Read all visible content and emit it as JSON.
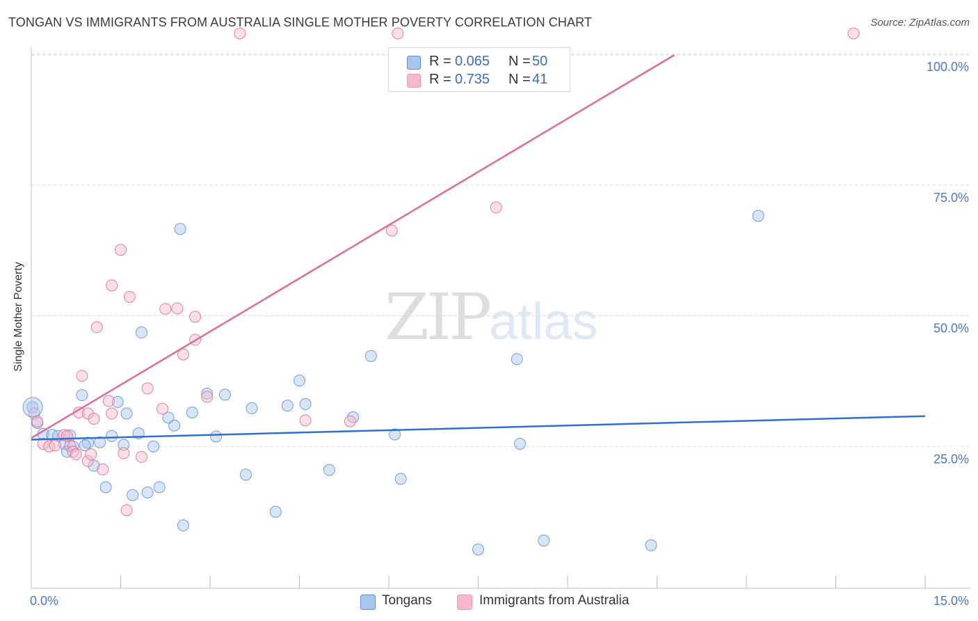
{
  "title": "TONGAN VS IMMIGRANTS FROM AUSTRALIA SINGLE MOTHER POVERTY CORRELATION CHART",
  "source": "Source: ZipAtlas.com",
  "watermark": {
    "zip": "ZIP",
    "atlas": "atlas"
  },
  "colors": {
    "blue": "#5b8fd6",
    "blue_fill": "#a9c6ee",
    "pink": "#e06b93",
    "pink_fill": "#f6b8ca",
    "blue_line": "#2f6fcf",
    "pink_line": "#e06b93"
  },
  "legend_top": {
    "rows": [
      {
        "swatch": "blue",
        "r_label": "R =",
        "r_value": "0.065",
        "n_label": "N =",
        "n_value": "50"
      },
      {
        "swatch": "pink",
        "r_label": "R =",
        "r_value": "0.735",
        "n_label": "N =",
        "n_value": "41"
      }
    ]
  },
  "legend_bottom": [
    {
      "label": "Tongans",
      "swatch": "blue"
    },
    {
      "label": "Immigrants from Australia",
      "swatch": "pink"
    }
  ],
  "chart_data": {
    "type": "scatter",
    "title": "TONGAN VS IMMIGRANTS FROM AUSTRALIA SINGLE MOTHER POVERTY CORRELATION CHART",
    "xlabel": "",
    "ylabel": "Single Mother Poverty",
    "xlim": [
      0,
      15
    ],
    "ylim": [
      0,
      100
    ],
    "x_tick_labels": [
      "0.0%",
      "15.0%"
    ],
    "y_ticks": [
      25,
      50,
      75,
      100
    ],
    "y_tick_labels": [
      "25.0%",
      "50.0%",
      "75.0%",
      "100.0%"
    ],
    "grid": true,
    "series": [
      {
        "name": "Tongans",
        "color": "blue",
        "trend": {
          "x": [
            0,
            15
          ],
          "y": [
            26.3,
            30.8
          ]
        },
        "points": [
          [
            0.02,
            32.5
          ],
          [
            0.1,
            29.5
          ],
          [
            0.2,
            27.4
          ],
          [
            0.35,
            27.2
          ],
          [
            0.45,
            27
          ],
          [
            0.55,
            25.5
          ],
          [
            0.6,
            24
          ],
          [
            0.7,
            25
          ],
          [
            0.85,
            34.8
          ],
          [
            0.95,
            25.7
          ],
          [
            1.05,
            21.3
          ],
          [
            1.15,
            25.8
          ],
          [
            1.25,
            17.2
          ],
          [
            1.35,
            27
          ],
          [
            1.45,
            33.5
          ],
          [
            1.55,
            25.3
          ],
          [
            1.6,
            31.3
          ],
          [
            1.7,
            15.7
          ],
          [
            1.8,
            27.5
          ],
          [
            1.85,
            46.8
          ],
          [
            1.95,
            16.2
          ],
          [
            2.05,
            25
          ],
          [
            2.15,
            17.2
          ],
          [
            2.3,
            30.5
          ],
          [
            2.4,
            29
          ],
          [
            2.5,
            66.6
          ],
          [
            2.55,
            9.9
          ],
          [
            2.7,
            31.5
          ],
          [
            2.95,
            35.1
          ],
          [
            3.1,
            26.9
          ],
          [
            3.25,
            34.9
          ],
          [
            3.6,
            19.6
          ],
          [
            3.7,
            32.3
          ],
          [
            4.1,
            12.5
          ],
          [
            4.3,
            32.8
          ],
          [
            4.5,
            37.6
          ],
          [
            4.6,
            33.1
          ],
          [
            5.0,
            20.5
          ],
          [
            5.4,
            30.6
          ],
          [
            5.7,
            42.3
          ],
          [
            6.1,
            27.3
          ],
          [
            6.2,
            18.8
          ],
          [
            7.5,
            5.3
          ],
          [
            8.15,
            41.7
          ],
          [
            8.2,
            25.5
          ],
          [
            8.6,
            7
          ],
          [
            10.4,
            6.1
          ],
          [
            12.2,
            69.1
          ],
          [
            0.65,
            27.1
          ],
          [
            0.9,
            25.2
          ]
        ]
      },
      {
        "name": "Immigrants from Australia",
        "color": "pink",
        "trend": {
          "x": [
            0,
            11.4
          ],
          "y": [
            26.6,
            104
          ]
        },
        "points": [
          [
            0.05,
            31.3
          ],
          [
            0.1,
            29.8
          ],
          [
            0.2,
            25.5
          ],
          [
            0.3,
            25
          ],
          [
            0.4,
            25.2
          ],
          [
            0.55,
            27.2
          ],
          [
            0.65,
            25.1
          ],
          [
            0.7,
            24
          ],
          [
            0.75,
            23.5
          ],
          [
            0.8,
            31.5
          ],
          [
            0.85,
            38.5
          ],
          [
            0.95,
            31.3
          ],
          [
            0.95,
            22.2
          ],
          [
            1.05,
            30.3
          ],
          [
            1.1,
            47.8
          ],
          [
            1.2,
            20.6
          ],
          [
            1.3,
            33.7
          ],
          [
            1.35,
            31.3
          ],
          [
            1.35,
            55.8
          ],
          [
            1.5,
            62.6
          ],
          [
            1.55,
            23.7
          ],
          [
            1.6,
            12.8
          ],
          [
            1.65,
            53.6
          ],
          [
            1.85,
            23
          ],
          [
            1.95,
            36.1
          ],
          [
            2.2,
            32.2
          ],
          [
            2.25,
            51.3
          ],
          [
            2.45,
            51.4
          ],
          [
            2.55,
            42.6
          ],
          [
            2.75,
            45.4
          ],
          [
            2.75,
            49.8
          ],
          [
            2.95,
            34.5
          ],
          [
            3.5,
            104
          ],
          [
            4.6,
            30
          ],
          [
            5.35,
            29.8
          ],
          [
            6.05,
            66.3
          ],
          [
            6.15,
            104
          ],
          [
            7.8,
            70.7
          ],
          [
            13.8,
            104
          ],
          [
            0.6,
            27
          ],
          [
            1.0,
            23.5
          ]
        ]
      }
    ]
  }
}
